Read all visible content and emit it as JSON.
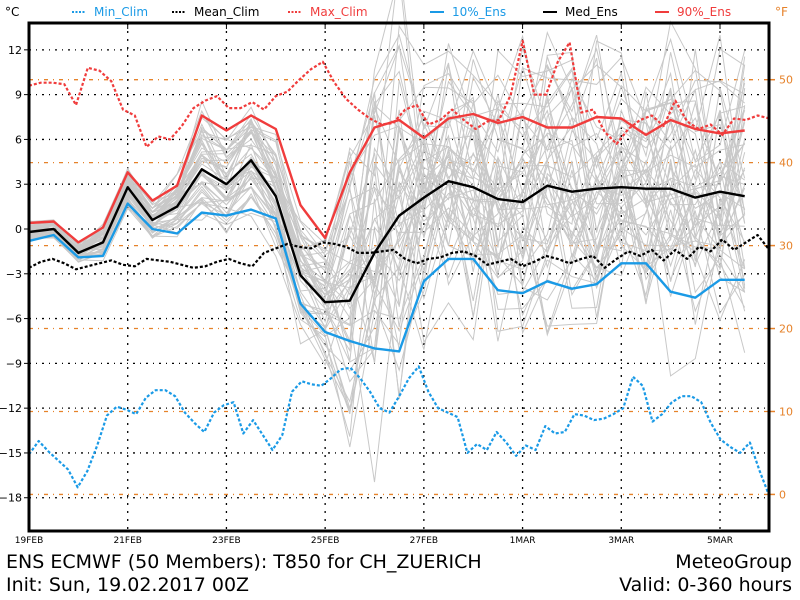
{
  "chart_data": {
    "type": "line",
    "title": "ENS ECMWF (50 Members): T850 for CH_ZUERICH",
    "init": "Init: Sun, 19.02.2017 00Z",
    "source": "MeteoGroup",
    "valid": "Valid: 0-360 hours",
    "ylabel_left": "°C",
    "ylabel_right": "°F",
    "ylim": [
      -20.5,
      14.3
    ],
    "xlim_hours": [
      0,
      360
    ],
    "grid": true,
    "yticks_left": [
      12,
      9,
      6,
      3,
      0,
      -3,
      -6,
      -9,
      -12,
      -15,
      -18
    ],
    "yticks_right": [
      50,
      40,
      30,
      20,
      10,
      0
    ],
    "xtick_labels": [
      "19FEB",
      "21FEB",
      "23FEB",
      "25FEB",
      "27FEB",
      "1MAR",
      "3MAR",
      "5MAR"
    ],
    "xtick_hours": [
      0,
      48,
      96,
      144,
      192,
      240,
      288,
      336
    ],
    "colors": {
      "min_clim": "#1a9ae6",
      "mean_clim": "#000000",
      "max_clim": "#f03c3c",
      "ens10": "#1a9ae6",
      "median": "#000000",
      "ens90": "#f03c3c",
      "members": "#c8c8c8",
      "fahrenheit": "#e6822a"
    },
    "legend": [
      {
        "name": "Min_Clim",
        "style": "dotted",
        "color_key": "min_clim"
      },
      {
        "name": "Mean_Clim",
        "style": "dotted",
        "color_key": "mean_clim"
      },
      {
        "name": "Max_Clim",
        "style": "dotted",
        "color_key": "max_clim"
      },
      {
        "name": "10%_Ens",
        "style": "solid",
        "color_key": "ens10"
      },
      {
        "name": "Med_Ens",
        "style": "solid",
        "color_key": "median"
      },
      {
        "name": "90%_Ens",
        "style": "solid",
        "color_key": "ens90"
      }
    ],
    "ens_step_hours": 12,
    "series": [
      {
        "name": "90%_Ens",
        "values": [
          0.4,
          0.5,
          -0.9,
          0.1,
          3.8,
          1.9,
          2.9,
          7.6,
          6.6,
          7.6,
          6.7,
          1.6,
          -0.6,
          3.8,
          6.8,
          7.3,
          6.1,
          7.4,
          7.7,
          7.1,
          7.5,
          6.8,
          6.8,
          7.5,
          7.4,
          6.3,
          7.3,
          6.7,
          6.4,
          6.6
        ]
      },
      {
        "name": "Med_Ens",
        "values": [
          -0.2,
          0.0,
          -1.6,
          -0.9,
          2.8,
          0.6,
          1.5,
          4.0,
          3.0,
          4.6,
          2.2,
          -3.1,
          -4.9,
          -4.8,
          -1.6,
          0.9,
          2.1,
          3.2,
          2.8,
          2.0,
          1.8,
          2.9,
          2.5,
          2.7,
          2.8,
          2.7,
          2.7,
          2.1,
          2.5,
          2.2
        ]
      },
      {
        "name": "10%_Ens",
        "values": [
          -0.8,
          -0.4,
          -1.9,
          -1.8,
          1.7,
          0.0,
          -0.3,
          1.1,
          0.9,
          1.3,
          0.7,
          -5.0,
          -6.9,
          -7.5,
          -8.0,
          -8.2,
          -3.5,
          -2.0,
          -2.0,
          -4.1,
          -4.3,
          -3.5,
          -4.0,
          -3.7,
          -2.3,
          -2.3,
          -4.2,
          -4.6,
          -3.4,
          -3.4
        ]
      },
      {
        "name": "Max_Clim",
        "values": [
          9.6,
          9.8,
          9.8,
          9.7,
          8.3,
          10.8,
          10.6,
          9.9,
          8.0,
          7.6,
          5.5,
          6.2,
          6.0,
          6.9,
          8.1,
          8.6,
          8.9,
          8.1,
          8.1,
          8.5,
          8.0,
          8.9,
          9.2,
          10.0,
          10.7,
          11.2,
          9.8,
          8.7,
          8.0,
          7.4,
          7.0,
          7.1,
          8.0,
          8.3,
          7.0,
          7.3,
          8.0,
          7.3,
          6.7,
          7.2,
          7.3,
          9.0,
          12.6,
          9.0,
          9.0,
          11.2,
          12.5,
          7.8,
          8.0,
          6.5,
          5.7,
          6.7,
          7.3,
          7.6,
          6.9,
          8.6,
          7.2,
          6.7,
          7.0,
          6.3,
          7.4,
          7.3,
          7.6,
          7.4
        ]
      },
      {
        "name": "Mean_Clim",
        "values": [
          -2.6,
          -2.2,
          -2.0,
          -2.3,
          -2.7,
          -2.5,
          -2.3,
          -2.1,
          -2.4,
          -2.5,
          -2.0,
          -2.1,
          -2.2,
          -2.4,
          -2.6,
          -2.5,
          -2.2,
          -2.0,
          -2.3,
          -2.5,
          -1.6,
          -1.3,
          -1.0,
          -1.2,
          -1.3,
          -0.9,
          -1.0,
          -1.2,
          -1.6,
          -1.6,
          -1.5,
          -1.4,
          -2.0,
          -2.3,
          -2.0,
          -1.9,
          -1.6,
          -1.5,
          -1.8,
          -2.4,
          -2.2,
          -2.0,
          -2.5,
          -2.2,
          -1.8,
          -2.0,
          -2.3,
          -2.0,
          -1.8,
          -2.6,
          -2.0,
          -1.5,
          -1.8,
          -1.4,
          -2.1,
          -1.4,
          -2.0,
          -1.2,
          -1.5,
          -0.7,
          -1.4,
          -0.9,
          -0.4,
          -1.4
        ]
      },
      {
        "name": "Min_Clim",
        "values": [
          -15.1,
          -14.2,
          -14.9,
          -15.5,
          -16.1,
          -17.3,
          -16.2,
          -14.5,
          -12.5,
          -11.9,
          -12.1,
          -12.4,
          -11.3,
          -10.8,
          -10.8,
          -11.2,
          -12.3,
          -13.0,
          -13.6,
          -12.3,
          -11.8,
          -11.6,
          -13.7,
          -12.8,
          -13.8,
          -14.8,
          -13.8,
          -10.9,
          -10.2,
          -10.4,
          -10.5,
          -10.0,
          -9.4,
          -9.3,
          -10.0,
          -10.9,
          -12.0,
          -12.3,
          -11.2,
          -10.0,
          -9.2,
          -10.9,
          -12.0,
          -12.3,
          -12.6,
          -15.0,
          -14.4,
          -14.8,
          -13.6,
          -14.3,
          -15.2,
          -14.5,
          -14.8,
          -13.2,
          -13.7,
          -13.6,
          -12.4,
          -12.5,
          -12.8,
          -12.7,
          -12.4,
          -12.0,
          -9.9,
          -10.5,
          -12.9,
          -12.4,
          -11.6,
          -11.2,
          -11.2,
          -11.6,
          -13.0,
          -14.1,
          -14.6,
          -15.0,
          -14.3,
          -16.2,
          -17.9
        ]
      }
    ],
    "members_count": 50
  },
  "header": {
    "unit_left": "°C",
    "unit_right": "°F"
  },
  "footer": {
    "title": "ENS ECMWF (50 Members): T850 for CH_ZUERICH",
    "init": "Init: Sun, 19.02.2017 00Z",
    "source": "MeteoGroup",
    "valid": "Valid: 0-360 hours"
  }
}
